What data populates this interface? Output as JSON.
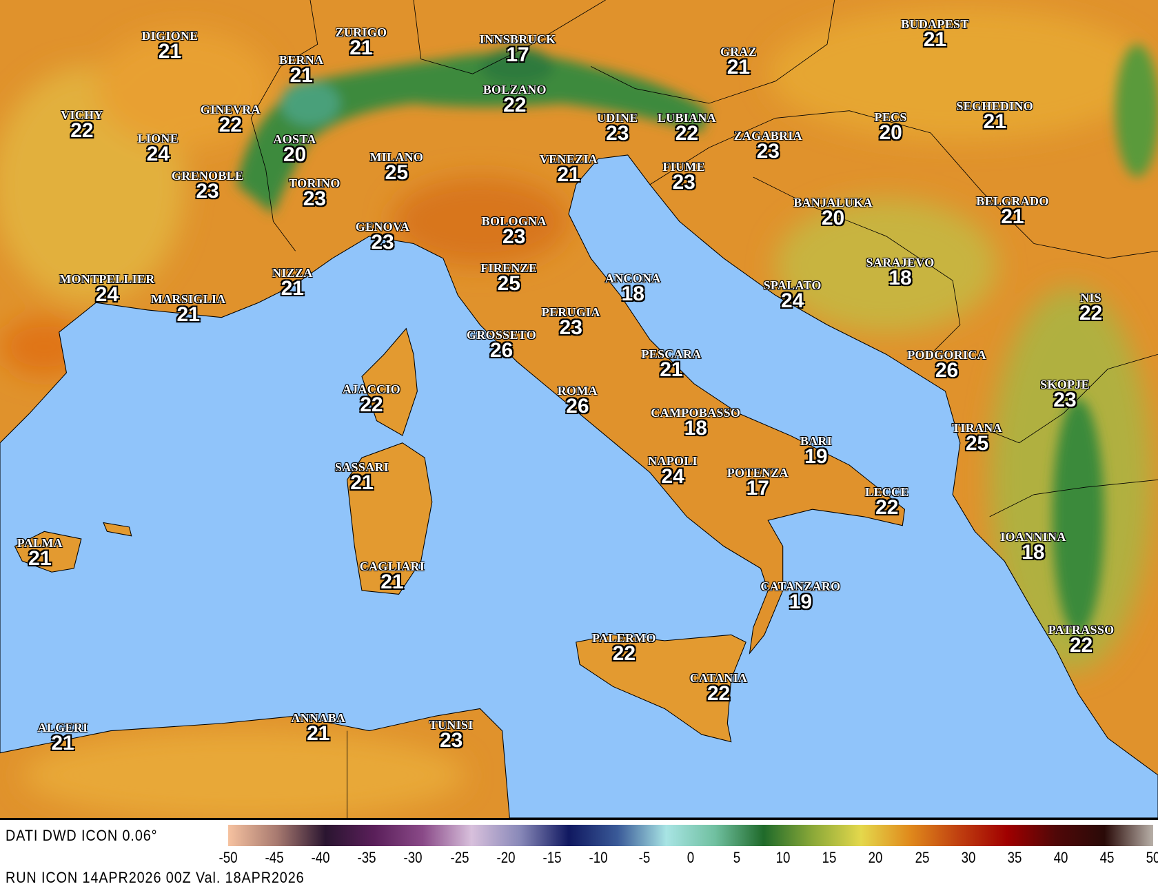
{
  "colors": {
    "sea": "#90c4fa",
    "land": "#e0922c",
    "mountain": "#2f7a3a",
    "border": "#000000"
  },
  "cities": [
    {
      "name": "DIGIONE",
      "temp": "21"
    },
    {
      "name": "ZURIGO",
      "temp": "21"
    },
    {
      "name": "INNSBRUCK",
      "temp": "17"
    },
    {
      "name": "BUDAPEST",
      "temp": "21"
    },
    {
      "name": "BERNA",
      "temp": "21"
    },
    {
      "name": "GRAZ",
      "temp": "21"
    },
    {
      "name": "VICHY",
      "temp": "22"
    },
    {
      "name": "GINEVRA",
      "temp": "22"
    },
    {
      "name": "BOLZANO",
      "temp": "22"
    },
    {
      "name": "SEGHEDINO",
      "temp": "21"
    },
    {
      "name": "LIONE",
      "temp": "24"
    },
    {
      "name": "AOSTA",
      "temp": "20"
    },
    {
      "name": "UDINE",
      "temp": "23"
    },
    {
      "name": "LUBIANA",
      "temp": "22"
    },
    {
      "name": "PECS",
      "temp": "20"
    },
    {
      "name": "ZAGABRIA",
      "temp": "23"
    },
    {
      "name": "MILANO",
      "temp": "25"
    },
    {
      "name": "VENEZIA",
      "temp": "21"
    },
    {
      "name": "FIUME",
      "temp": "23"
    },
    {
      "name": "GRENOBLE",
      "temp": "23"
    },
    {
      "name": "TORINO",
      "temp": "23"
    },
    {
      "name": "BANJALUKA",
      "temp": "20"
    },
    {
      "name": "BELGRADO",
      "temp": "21"
    },
    {
      "name": "GENOVA",
      "temp": "23"
    },
    {
      "name": "BOLOGNA",
      "temp": "23"
    },
    {
      "name": "SARAJEVO",
      "temp": "18"
    },
    {
      "name": "FIRENZE",
      "temp": "25"
    },
    {
      "name": "MONTPELLIER",
      "temp": "24"
    },
    {
      "name": "NIZZA",
      "temp": "21"
    },
    {
      "name": "ANCONA",
      "temp": "18"
    },
    {
      "name": "SPALATO",
      "temp": "24"
    },
    {
      "name": "MARSIGLIA",
      "temp": "21"
    },
    {
      "name": "NIS",
      "temp": "22"
    },
    {
      "name": "PERUGIA",
      "temp": "23"
    },
    {
      "name": "GROSSETO",
      "temp": "26"
    },
    {
      "name": "PESCARA",
      "temp": "21"
    },
    {
      "name": "PODGORICA",
      "temp": "26"
    },
    {
      "name": "SKOPJE",
      "temp": "23"
    },
    {
      "name": "AJACCIO",
      "temp": "22"
    },
    {
      "name": "ROMA",
      "temp": "26"
    },
    {
      "name": "CAMPOBASSO",
      "temp": "18"
    },
    {
      "name": "TIRANA",
      "temp": "25"
    },
    {
      "name": "BARI",
      "temp": "19"
    },
    {
      "name": "SASSARI",
      "temp": "21"
    },
    {
      "name": "NAPOLI",
      "temp": "24"
    },
    {
      "name": "POTENZA",
      "temp": "17"
    },
    {
      "name": "LECCE",
      "temp": "22"
    },
    {
      "name": "PALMA",
      "temp": "21"
    },
    {
      "name": "IOANNINA",
      "temp": "18"
    },
    {
      "name": "CAGLIARI",
      "temp": "21"
    },
    {
      "name": "CATANZARO",
      "temp": "19"
    },
    {
      "name": "PATRASSO",
      "temp": "22"
    },
    {
      "name": "PALERMO",
      "temp": "22"
    },
    {
      "name": "CATANIA",
      "temp": "22"
    },
    {
      "name": "ALGERI",
      "temp": "21"
    },
    {
      "name": "ANNABA",
      "temp": "21"
    },
    {
      "name": "TUNISI",
      "temp": "23"
    }
  ],
  "legend": {
    "ticks": [
      "-50",
      "-45",
      "-40",
      "-35",
      "-30",
      "-25",
      "-20",
      "-15",
      "-10",
      "-5",
      "0",
      "5",
      "10",
      "15",
      "20",
      "25",
      "30",
      "35",
      "40",
      "45",
      "50"
    ],
    "range": [
      -50,
      50
    ],
    "colors": [
      "#f6c2a0",
      "#a87a70",
      "#2a1530",
      "#5a1f5a",
      "#8a4a88",
      "#d8c0dc",
      "#8888b8",
      "#101860",
      "#3a5a98",
      "#a8e4e4",
      "#70c0a0",
      "#1f6a2a",
      "#8aa838",
      "#e4d84c",
      "#e08a1c",
      "#c04010",
      "#a00000",
      "#500808",
      "#2a0a08",
      "#b8b0a8"
    ]
  },
  "footer": {
    "source": "DATI DWD ICON 0.06°",
    "run": "RUN ICON 14APR2026 00Z Val. 18APR2026"
  }
}
